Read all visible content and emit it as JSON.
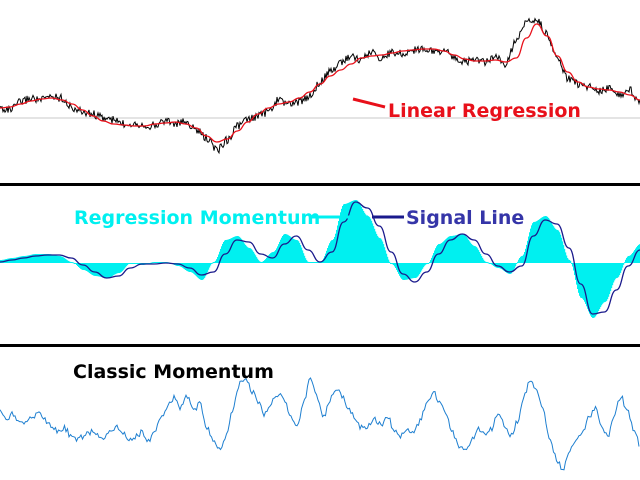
{
  "colors": {
    "background": "#ffffff",
    "price": "#000000",
    "regression": "#e8101a",
    "momentum_fill": "#00f0f0",
    "signal": "#1a1a8c",
    "classic": "#1e7fd0",
    "separator": "#000000",
    "reference": "#c8c8c8",
    "label_regression": "#e8101a",
    "label_momentum": "#00f0f0",
    "label_signal": "#3535a8",
    "label_classic": "#000000"
  },
  "chart_data": [
    {
      "type": "line",
      "panel": "price",
      "series": [
        {
          "name": "Linear Regression",
          "values": [
            108,
            107,
            104,
            101,
            99,
            98,
            100,
            104,
            110,
            116,
            121,
            124,
            125,
            126,
            126,
            124,
            123,
            122,
            124,
            128,
            136,
            142,
            139,
            131,
            122,
            114,
            108,
            104,
            102,
            98,
            92,
            84,
            76,
            70,
            64,
            58,
            56,
            55,
            53,
            51,
            50,
            49,
            49,
            51,
            55,
            59,
            61,
            61,
            60,
            62,
            58,
            38,
            24,
            36,
            56,
            72,
            82,
            87,
            89,
            90,
            92,
            95,
            100
          ]
        },
        {
          "name": "",
          "values": [
            108,
            110,
            102,
            98,
            100,
            96,
            98,
            108,
            112,
            114,
            118,
            120,
            124,
            123,
            125,
            126,
            120,
            124,
            122,
            130,
            138,
            150,
            140,
            126,
            120,
            116,
            112,
            100,
            104,
            102,
            96,
            82,
            72,
            62,
            56,
            60,
            52,
            58,
            52,
            54,
            50,
            48,
            52,
            50,
            58,
            62,
            60,
            62,
            58,
            64,
            40,
            22,
            20,
            34,
            60,
            78,
            84,
            86,
            92,
            88,
            96,
            90,
            102
          ]
        }
      ]
    },
    {
      "type": "area",
      "panel": "regression-momentum",
      "series": [
        {
          "name": "Regression Momentum",
          "values": [
            260,
            258,
            256,
            254,
            254,
            256,
            262,
            270,
            276,
            278,
            273,
            263,
            265,
            262,
            262,
            266,
            272,
            280,
            262,
            240,
            236,
            248,
            262,
            252,
            234,
            240,
            262,
            262,
            240,
            204,
            200,
            216,
            238,
            264,
            280,
            278,
            264,
            244,
            236,
            234,
            246,
            262,
            268,
            274,
            256,
            222,
            216,
            230,
            260,
            298,
            318,
            302,
            278,
            256,
            244
          ]
        },
        {
          "name": "Signal Line",
          "values": [
            262,
            260,
            258,
            256,
            255,
            255,
            258,
            265,
            272,
            278,
            276,
            268,
            264,
            264,
            263,
            264,
            268,
            275,
            272,
            254,
            240,
            242,
            254,
            258,
            244,
            236,
            250,
            262,
            252,
            222,
            202,
            208,
            226,
            252,
            274,
            282,
            272,
            254,
            240,
            234,
            240,
            254,
            266,
            272,
            266,
            236,
            220,
            224,
            248,
            284,
            314,
            312,
            290,
            266,
            250
          ]
        }
      ]
    },
    {
      "type": "line",
      "panel": "classic-momentum",
      "series": [
        {
          "name": "Classic Momentum",
          "values": [
            412,
            418,
            414,
            420,
            424,
            418,
            412,
            420,
            426,
            432,
            428,
            436,
            440,
            436,
            432,
            434,
            438,
            430,
            426,
            432,
            440,
            436,
            432,
            442,
            430,
            418,
            404,
            398,
            408,
            396,
            410,
            404,
            428,
            440,
            448,
            436,
            412,
            384,
            378,
            392,
            404,
            414,
            402,
            394,
            400,
            416,
            428,
            402,
            378,
            396,
            418,
            400,
            388,
            398,
            410,
            420,
            428,
            426,
            420,
            424,
            418,
            430,
            436,
            428,
            434,
            420,
            404,
            392,
            402,
            416,
            432,
            446,
            452,
            440,
            428,
            436,
            430,
            414,
            424,
            436,
            422,
            396,
            380,
            388,
            410,
            436,
            458,
            470,
            452,
            440,
            434,
            418,
            408,
            424,
            438,
            416,
            396,
            410,
            428,
            446
          ]
        }
      ]
    }
  ],
  "labels": {
    "linear_regression": "Linear Regression",
    "regression_momentum": "Regression Momentum",
    "signal_line": "Signal Line",
    "classic_momentum": "Classic Momentum"
  }
}
